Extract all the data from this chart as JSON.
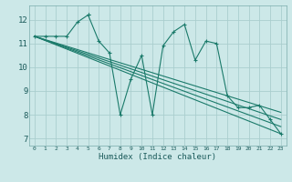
{
  "xlabel": "Humidex (Indice chaleur)",
  "bg_color": "#cce8e8",
  "grid_color": "#aacece",
  "line_color": "#1a7a6a",
  "xlim": [
    -0.5,
    23.5
  ],
  "ylim": [
    6.7,
    12.6
  ],
  "yticks": [
    7,
    8,
    9,
    10,
    11,
    12
  ],
  "xticks": [
    0,
    1,
    2,
    3,
    4,
    5,
    6,
    7,
    8,
    9,
    10,
    11,
    12,
    13,
    14,
    15,
    16,
    17,
    18,
    19,
    20,
    21,
    22,
    23
  ],
  "series1_x": [
    0,
    1,
    2,
    3,
    4,
    5,
    5,
    6,
    7,
    8,
    9,
    10,
    11,
    12,
    13,
    14,
    15,
    16,
    17,
    18,
    19,
    20,
    21,
    22,
    23
  ],
  "series1_y": [
    11.3,
    11.3,
    11.3,
    11.3,
    11.9,
    12.2,
    12.2,
    11.1,
    10.6,
    8.0,
    9.5,
    10.5,
    8.0,
    10.9,
    11.5,
    11.8,
    10.3,
    11.1,
    11.0,
    8.8,
    8.3,
    8.3,
    8.4,
    7.8,
    7.2
  ],
  "line1_x": [
    0,
    23
  ],
  "line1_y": [
    11.3,
    7.2
  ],
  "line2_x": [
    0,
    23
  ],
  "line2_y": [
    11.3,
    7.5
  ],
  "line3_x": [
    0,
    23
  ],
  "line3_y": [
    11.3,
    7.8
  ],
  "line4_x": [
    0,
    23
  ],
  "line4_y": [
    11.3,
    8.1
  ]
}
